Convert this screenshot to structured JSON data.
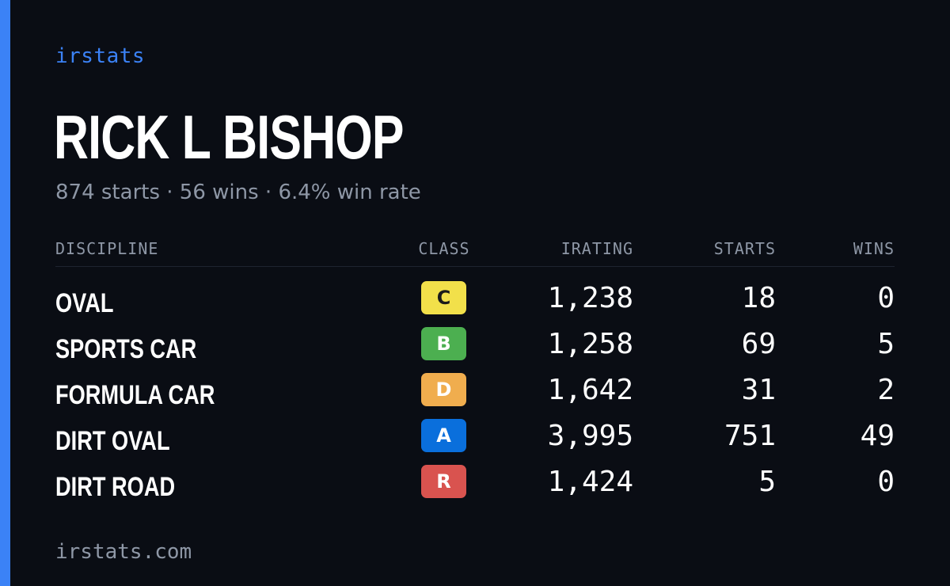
{
  "brand": "irstats",
  "driver": {
    "name": "RICK L BISHOP",
    "summary": "874 starts · 56 wins · 6.4% win rate"
  },
  "table": {
    "headers": {
      "discipline": "DISCIPLINE",
      "class": "CLASS",
      "irating": "IRATING",
      "starts": "STARTS",
      "wins": "WINS"
    },
    "rows": [
      {
        "discipline": "OVAL",
        "class": "C",
        "class_color": "#f2e04a",
        "class_text_color": "#1a1a1a",
        "irating": "1,238",
        "starts": "18",
        "wins": "0"
      },
      {
        "discipline": "SPORTS CAR",
        "class": "B",
        "class_color": "#4caf50",
        "class_text_color": "#ffffff",
        "irating": "1,258",
        "starts": "69",
        "wins": "5"
      },
      {
        "discipline": "FORMULA CAR",
        "class": "D",
        "class_color": "#f0ad4e",
        "class_text_color": "#ffffff",
        "irating": "1,642",
        "starts": "31",
        "wins": "2"
      },
      {
        "discipline": "DIRT OVAL",
        "class": "A",
        "class_color": "#0a6fdc",
        "class_text_color": "#ffffff",
        "irating": "3,995",
        "starts": "751",
        "wins": "49"
      },
      {
        "discipline": "DIRT ROAD",
        "class": "R",
        "class_color": "#d9534f",
        "class_text_color": "#ffffff",
        "irating": "1,424",
        "starts": "5",
        "wins": "0"
      }
    ]
  },
  "footer": "irstats.com",
  "colors": {
    "background": "#0a0d14",
    "accent": "#3b82f6",
    "muted_text": "#8e97a6",
    "primary_text": "#ffffff"
  }
}
